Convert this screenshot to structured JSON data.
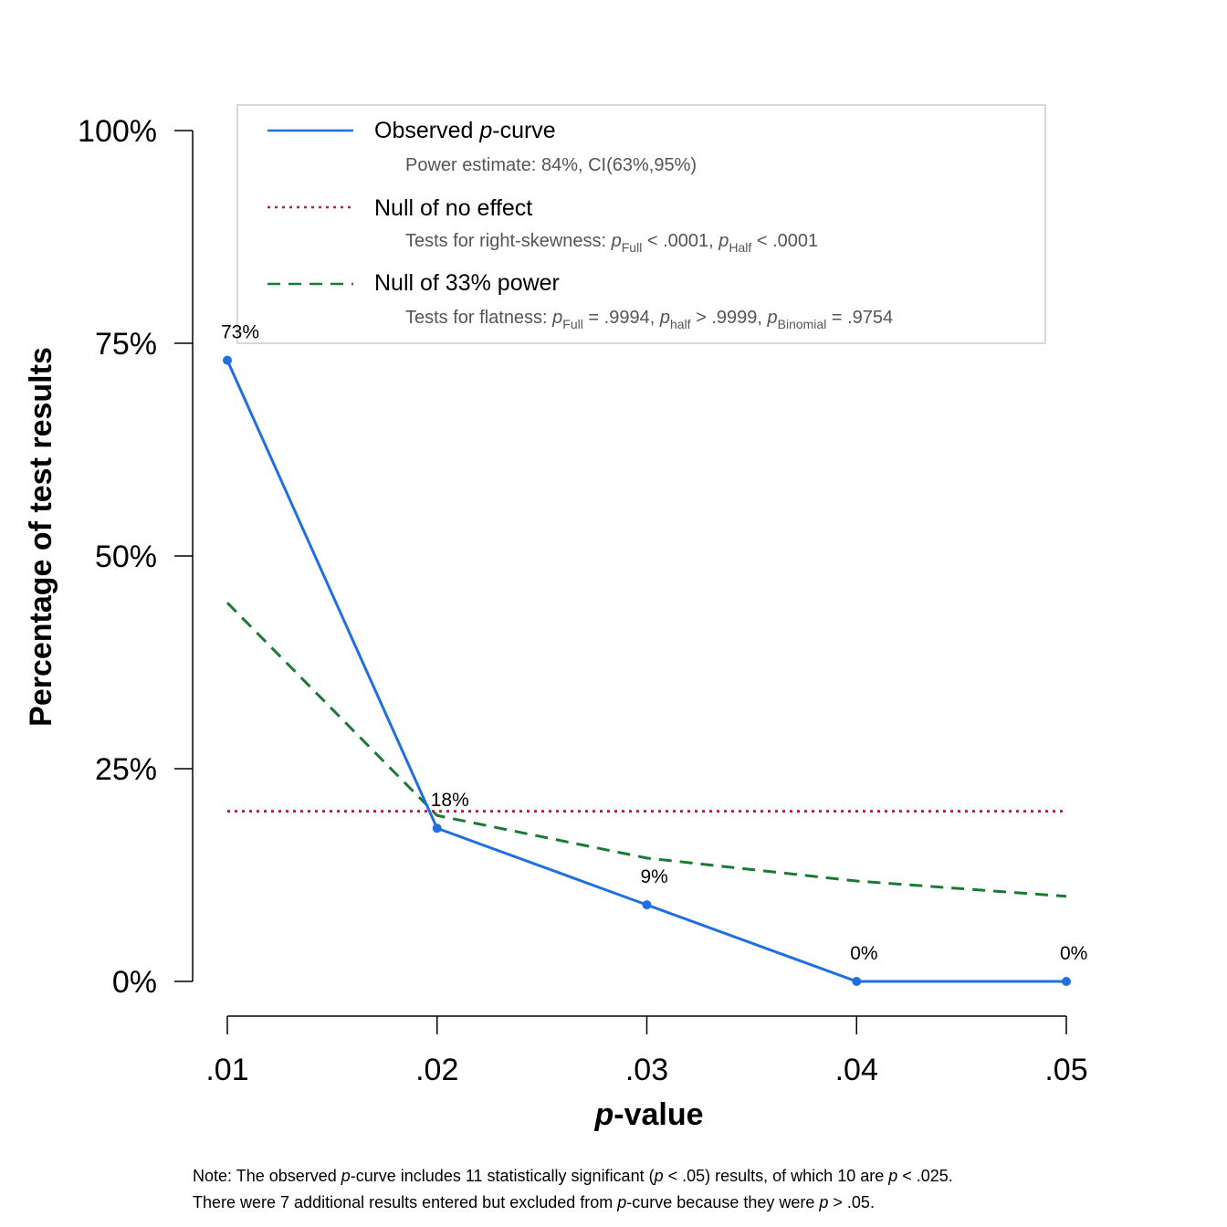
{
  "chart_data": {
    "type": "line",
    "xlabel_italic": "p",
    "xlabel_rest": "-value",
    "ylabel": "Percentage of test results",
    "categories": [
      ".01",
      ".02",
      ".03",
      ".04",
      ".05"
    ],
    "x": [
      0.01,
      0.02,
      0.03,
      0.04,
      0.05
    ],
    "ylim": [
      0,
      100
    ],
    "yticks": [
      0,
      25,
      50,
      75,
      100
    ],
    "ytick_labels": [
      "0%",
      "25%",
      "50%",
      "75%",
      "100%"
    ],
    "series": [
      {
        "name": "Observed p-curve",
        "values": [
          73,
          18,
          9,
          0,
          0
        ],
        "color": "#1f6fe0",
        "style": "solid",
        "labels": [
          "73%",
          "18%",
          "9%",
          "0%",
          "0%"
        ]
      },
      {
        "name": "Null of no effect",
        "values": [
          20,
          20,
          20,
          20,
          20
        ],
        "color": "#e0112b",
        "style": "dotted"
      },
      {
        "name": "Null of 33% power",
        "values": [
          44.5,
          19.5,
          14.5,
          11.8,
          10
        ],
        "color": "#1a7a34",
        "style": "dashed"
      }
    ],
    "legend": {
      "position": "top",
      "observed": {
        "label_pre": "Observed ",
        "label_ital": "p",
        "label_post": "-curve",
        "sub": "Power estimate: 84%, CI(63%,95%)"
      },
      "null_effect": {
        "label": "Null of no effect",
        "sub_prefix": "Tests for right-skewness: ",
        "tests": [
          {
            "p": "p",
            "sub": "Full",
            "op": " < .0001,"
          },
          {
            "p": "p",
            "sub": "Half",
            "op": " < .0001"
          }
        ]
      },
      "null_power": {
        "label": "Null of 33% power",
        "sub_prefix": "Tests for flatness: ",
        "tests": [
          {
            "p": "p",
            "sub": "Full",
            "op": " = .9994,"
          },
          {
            "p": "p",
            "sub": "half",
            "op": " > .9999,"
          },
          {
            "p": "p",
            "sub": "Binomial",
            "op": " = .9754"
          }
        ]
      }
    },
    "note": {
      "line1": [
        {
          "t": "Note: The observed ",
          "i": false
        },
        {
          "t": "p",
          "i": true
        },
        {
          "t": "-curve includes 11 statistically significant (",
          "i": false
        },
        {
          "t": "p",
          "i": true
        },
        {
          "t": " < .05) results, of which 10 are ",
          "i": false
        },
        {
          "t": "p",
          "i": true
        },
        {
          "t": " < .025.",
          "i": false
        }
      ],
      "line2": [
        {
          "t": "There were 7 additional results entered but excluded from ",
          "i": false
        },
        {
          "t": "p",
          "i": true
        },
        {
          "t": "-curve because they were ",
          "i": false
        },
        {
          "t": "p",
          "i": true
        },
        {
          "t": " > .05.",
          "i": false
        }
      ]
    }
  }
}
